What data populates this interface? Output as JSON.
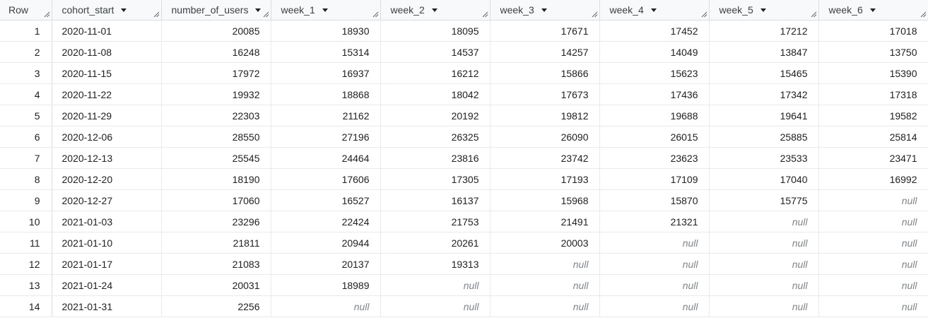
{
  "columns": [
    {
      "key": "row",
      "label": "Row",
      "sortable": false
    },
    {
      "key": "cohort_start",
      "label": "cohort_start",
      "sortable": true
    },
    {
      "key": "number_of_users",
      "label": "number_of_users",
      "sortable": true
    },
    {
      "key": "week_1",
      "label": "week_1",
      "sortable": true
    },
    {
      "key": "week_2",
      "label": "week_2",
      "sortable": true
    },
    {
      "key": "week_3",
      "label": "week_3",
      "sortable": true
    },
    {
      "key": "week_4",
      "label": "week_4",
      "sortable": true
    },
    {
      "key": "week_5",
      "label": "week_5",
      "sortable": true
    },
    {
      "key": "week_6",
      "label": "week_6",
      "sortable": true
    }
  ],
  "rows": [
    [
      "1",
      "2020-11-01",
      "20085",
      "18930",
      "18095",
      "17671",
      "17452",
      "17212",
      "17018"
    ],
    [
      "2",
      "2020-11-08",
      "16248",
      "15314",
      "14537",
      "14257",
      "14049",
      "13847",
      "13750"
    ],
    [
      "3",
      "2020-11-15",
      "17972",
      "16937",
      "16212",
      "15866",
      "15623",
      "15465",
      "15390"
    ],
    [
      "4",
      "2020-11-22",
      "19932",
      "18868",
      "18042",
      "17673",
      "17436",
      "17342",
      "17318"
    ],
    [
      "5",
      "2020-11-29",
      "22303",
      "21162",
      "20192",
      "19812",
      "19688",
      "19641",
      "19582"
    ],
    [
      "6",
      "2020-12-06",
      "28550",
      "27196",
      "26325",
      "26090",
      "26015",
      "25885",
      "25814"
    ],
    [
      "7",
      "2020-12-13",
      "25545",
      "24464",
      "23816",
      "23742",
      "23623",
      "23533",
      "23471"
    ],
    [
      "8",
      "2020-12-20",
      "18190",
      "17606",
      "17305",
      "17193",
      "17109",
      "17040",
      "16992"
    ],
    [
      "9",
      "2020-12-27",
      "17060",
      "16527",
      "16137",
      "15968",
      "15870",
      "15775",
      "null"
    ],
    [
      "10",
      "2021-01-03",
      "23296",
      "22424",
      "21753",
      "21491",
      "21321",
      "null",
      "null"
    ],
    [
      "11",
      "2021-01-10",
      "21811",
      "20944",
      "20261",
      "20003",
      "null",
      "null",
      "null"
    ],
    [
      "12",
      "2021-01-17",
      "21083",
      "20137",
      "19313",
      "null",
      "null",
      "null",
      "null"
    ],
    [
      "13",
      "2021-01-24",
      "20031",
      "18989",
      "null",
      "null",
      "null",
      "null",
      "null"
    ],
    [
      "14",
      "2021-01-31",
      "2256",
      "null",
      "null",
      "null",
      "null",
      "null",
      "null"
    ]
  ],
  "null_text": "null",
  "colors": {
    "header_bg": "#f8f9fa",
    "border": "#dadce0",
    "null_text": "#80868b"
  },
  "icons": {
    "sort": "caret-down-icon",
    "resize": "column-resize-handle-icon"
  }
}
